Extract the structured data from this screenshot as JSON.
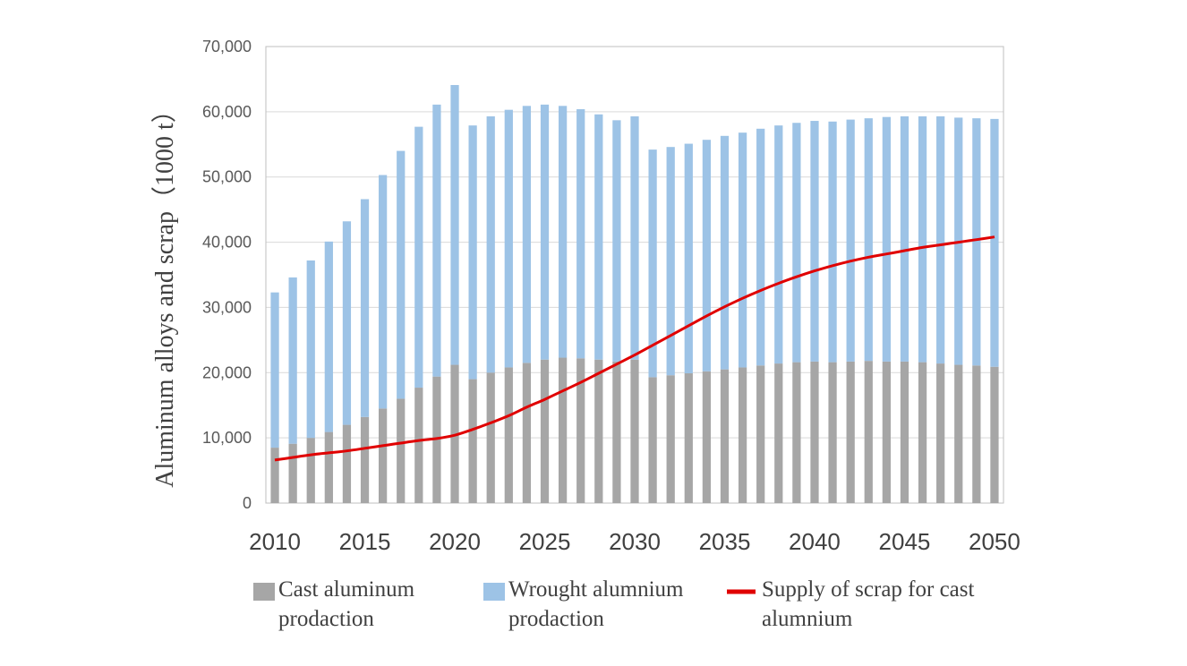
{
  "chart_data": {
    "type": "bar",
    "stacked": true,
    "x": [
      2010,
      2011,
      2012,
      2013,
      2014,
      2015,
      2016,
      2017,
      2018,
      2019,
      2020,
      2021,
      2022,
      2023,
      2024,
      2025,
      2026,
      2027,
      2028,
      2029,
      2030,
      2031,
      2032,
      2033,
      2034,
      2035,
      2036,
      2037,
      2038,
      2039,
      2040,
      2041,
      2042,
      2043,
      2044,
      2045,
      2046,
      2047,
      2048,
      2049,
      2050
    ],
    "x_tick_labels": [
      "2010",
      "2015",
      "2020",
      "2025",
      "2030",
      "2035",
      "2040",
      "2045",
      "2050"
    ],
    "y_tick_labels": [
      "0",
      "10,000",
      "20,000",
      "30,000",
      "40,000",
      "50,000",
      "60,000",
      "70,000"
    ],
    "ylim": [
      0,
      70000
    ],
    "ylabel": "Aluminum alloys and scrap（1000 t）",
    "xlabel": "",
    "grid": true,
    "legend_position": "bottom",
    "series": [
      {
        "name": "Cast aluminum prodaction",
        "kind": "bar",
        "color": "#a6a6a6",
        "values": [
          8500,
          9100,
          10000,
          10900,
          12000,
          13200,
          14500,
          16000,
          17700,
          19400,
          21200,
          19000,
          20000,
          20800,
          21500,
          22000,
          22300,
          22200,
          22000,
          21700,
          22000,
          19300,
          19600,
          19900,
          20200,
          20500,
          20800,
          21100,
          21400,
          21600,
          21700,
          21600,
          21700,
          21800,
          21700,
          21700,
          21600,
          21400,
          21200,
          21100,
          20900
        ]
      },
      {
        "name": "Wrought alumnium prodaction",
        "kind": "bar",
        "color": "#9dc3e6",
        "values": [
          23800,
          25500,
          27200,
          29200,
          31200,
          33400,
          35800,
          38000,
          40000,
          41700,
          42900,
          38900,
          39300,
          39500,
          39400,
          39100,
          38600,
          38200,
          37600,
          37000,
          37300,
          34900,
          35000,
          35200,
          35500,
          35800,
          36000,
          36300,
          36500,
          36700,
          36900,
          36900,
          37100,
          37200,
          37500,
          37600,
          37700,
          37900,
          37900,
          37900,
          38000
        ]
      },
      {
        "name": "Supply of scrap for cast alumnium",
        "kind": "line",
        "color": "#e00000",
        "values": [
          6600,
          7000,
          7400,
          7700,
          8000,
          8400,
          8800,
          9200,
          9600,
          9900,
          10400,
          11300,
          12300,
          13400,
          14700,
          15900,
          17200,
          18500,
          19900,
          21300,
          22700,
          24200,
          25700,
          27200,
          28700,
          30100,
          31400,
          32600,
          33700,
          34700,
          35600,
          36400,
          37100,
          37700,
          38200,
          38700,
          39200,
          39600,
          40000,
          40400,
          40800
        ]
      }
    ]
  }
}
